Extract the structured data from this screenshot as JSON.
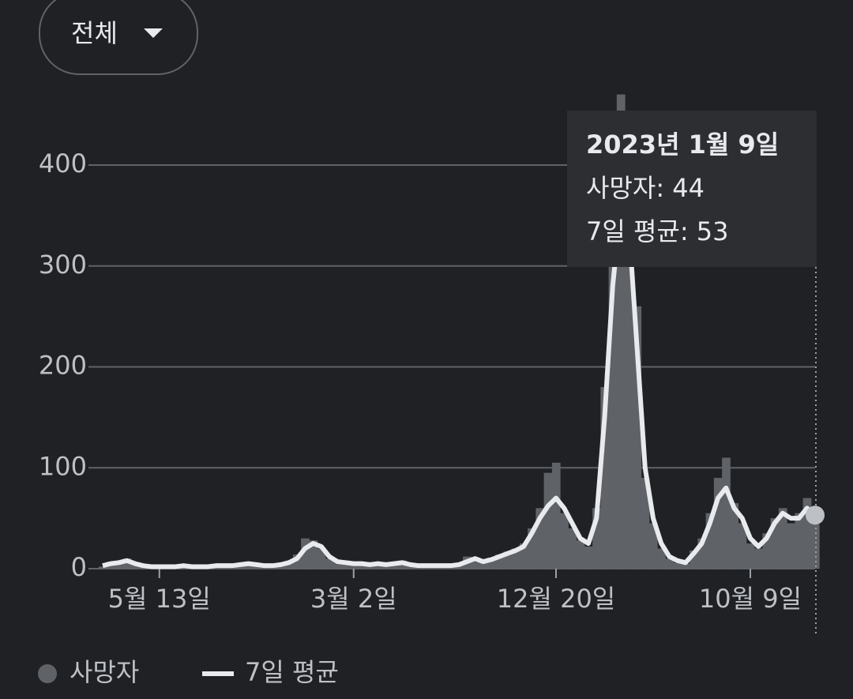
{
  "filter": {
    "label": "전체"
  },
  "chart_data": {
    "type": "bar_line",
    "categories": [
      null,
      null,
      null,
      null,
      null,
      null,
      null,
      "5월 13일",
      null,
      null,
      null,
      null,
      null,
      null,
      null,
      null,
      null,
      null,
      null,
      null,
      null,
      null,
      null,
      null,
      null,
      null,
      null,
      null,
      null,
      null,
      null,
      "3월 2일",
      null,
      null,
      null,
      null,
      null,
      null,
      null,
      null,
      null,
      null,
      null,
      null,
      null,
      null,
      null,
      null,
      null,
      null,
      null,
      null,
      null,
      null,
      null,
      null,
      "12월 20일",
      null,
      null,
      null,
      null,
      null,
      null,
      null,
      null,
      null,
      null,
      null,
      null,
      null,
      null,
      null,
      null,
      null,
      null,
      null,
      null,
      null,
      null,
      null,
      "10월 9일",
      null,
      null,
      null,
      null,
      null,
      null,
      null,
      null
    ],
    "series": [
      {
        "name": "사망자",
        "color": "#5f6368",
        "values": [
          2,
          7,
          5,
          10,
          6,
          2,
          1,
          3,
          1,
          2,
          4,
          1,
          2,
          3,
          2,
          4,
          3,
          5,
          6,
          3,
          2,
          4,
          3,
          7,
          14,
          30,
          28,
          20,
          10,
          6,
          8,
          4,
          6,
          3,
          6,
          5,
          4,
          8,
          3,
          2,
          4,
          2,
          3,
          4,
          5,
          12,
          8,
          6,
          11,
          14,
          17,
          20,
          25,
          40,
          60,
          95,
          105,
          55,
          40,
          28,
          22,
          60,
          180,
          310,
          470,
          330,
          260,
          90,
          45,
          20,
          10,
          6,
          5,
          18,
          30,
          55,
          90,
          110,
          65,
          45,
          25,
          20,
          35,
          50,
          60,
          45,
          55,
          70,
          44
        ]
      },
      {
        "name": "7일 평균",
        "color": "#e8eaed",
        "values": [
          3,
          5,
          6,
          8,
          5,
          3,
          2,
          2,
          2,
          2,
          3,
          2,
          2,
          2,
          3,
          3,
          3,
          4,
          5,
          4,
          3,
          3,
          4,
          6,
          10,
          20,
          25,
          22,
          12,
          7,
          6,
          5,
          5,
          4,
          5,
          4,
          5,
          6,
          4,
          3,
          3,
          3,
          3,
          3,
          4,
          7,
          10,
          7,
          9,
          12,
          15,
          18,
          22,
          35,
          50,
          62,
          70,
          60,
          45,
          30,
          25,
          50,
          150,
          280,
          360,
          340,
          220,
          100,
          50,
          25,
          12,
          8,
          6,
          15,
          25,
          45,
          70,
          80,
          60,
          50,
          30,
          22,
          30,
          45,
          55,
          50,
          50,
          60,
          53
        ]
      }
    ],
    "ylim": [
      0,
      400
    ],
    "yticks": [
      0,
      100,
      200,
      300,
      400
    ],
    "grid": true,
    "tooltip": {
      "title": "2023년 1월 9일",
      "lines": [
        "사망자: 44",
        "7일 평균: 53"
      ]
    }
  }
}
